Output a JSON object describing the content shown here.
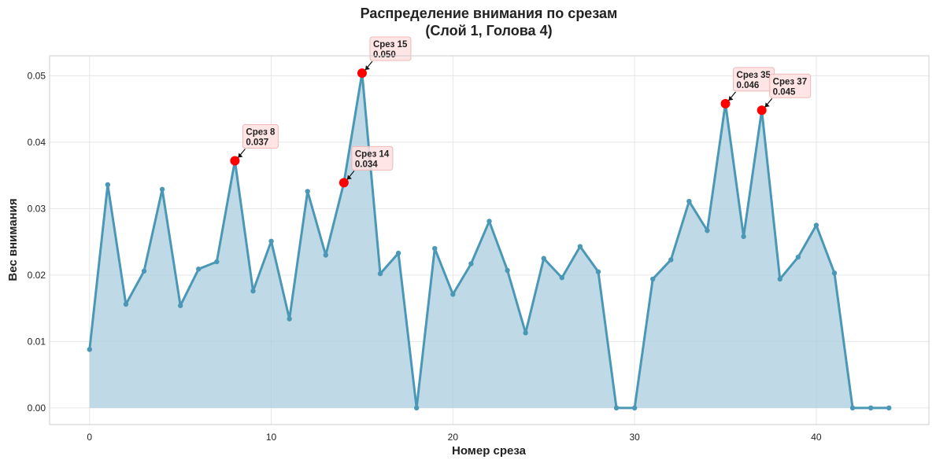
{
  "chart_data": {
    "type": "line",
    "title_line1": "Распределение внимания по срезам",
    "title_line2": "(Слой 1, Голова 4)",
    "xlabel": "Номер среза",
    "ylabel": "Вес внимания",
    "xlim": [
      -2.2,
      46.2
    ],
    "ylim": [
      -0.0025,
      0.053
    ],
    "x_ticks": [
      0,
      10,
      20,
      30,
      40
    ],
    "y_ticks": [
      0.0,
      0.01,
      0.02,
      0.03,
      0.04,
      0.05
    ],
    "y_tick_labels": [
      "0.00",
      "0.01",
      "0.02",
      "0.03",
      "0.04",
      "0.05"
    ],
    "grid": true,
    "x": [
      0,
      1,
      2,
      3,
      4,
      5,
      6,
      7,
      8,
      9,
      10,
      11,
      12,
      13,
      14,
      15,
      16,
      17,
      18,
      19,
      20,
      21,
      22,
      23,
      24,
      25,
      26,
      27,
      28,
      29,
      30,
      31,
      32,
      33,
      34,
      35,
      36,
      37,
      38,
      39,
      40,
      41,
      42,
      43,
      44
    ],
    "values": [
      0.0088,
      0.0336,
      0.0156,
      0.0206,
      0.0329,
      0.0154,
      0.0209,
      0.022,
      0.0372,
      0.0176,
      0.0251,
      0.0134,
      0.0326,
      0.023,
      0.0339,
      0.0504,
      0.0202,
      0.0233,
      0.0,
      0.024,
      0.0171,
      0.0217,
      0.0281,
      0.0207,
      0.0113,
      0.0225,
      0.0196,
      0.0243,
      0.0205,
      0.0,
      0.0,
      0.0194,
      0.0223,
      0.0311,
      0.0267,
      0.0458,
      0.0258,
      0.0448,
      0.0194,
      0.0227,
      0.0275,
      0.0203,
      0.0,
      0.0,
      0.0
    ],
    "highlights": [
      {
        "x": 8,
        "y": 0.0372,
        "label1": "Срез 8",
        "label2": "0.037"
      },
      {
        "x": 14,
        "y": 0.0339,
        "label1": "Срез 14",
        "label2": "0.034"
      },
      {
        "x": 15,
        "y": 0.0504,
        "label1": "Срез 15",
        "label2": "0.050"
      },
      {
        "x": 35,
        "y": 0.0458,
        "label1": "Срез 35",
        "label2": "0.046"
      },
      {
        "x": 37,
        "y": 0.0448,
        "label1": "Срез 37",
        "label2": "0.045"
      }
    ],
    "colors": {
      "line": "#4a97b6",
      "fill": "#a9cedd",
      "highlight": "#ff0000",
      "annotation_bg": "#ffe0e0",
      "annotation_border": "#f0b8b8"
    }
  }
}
